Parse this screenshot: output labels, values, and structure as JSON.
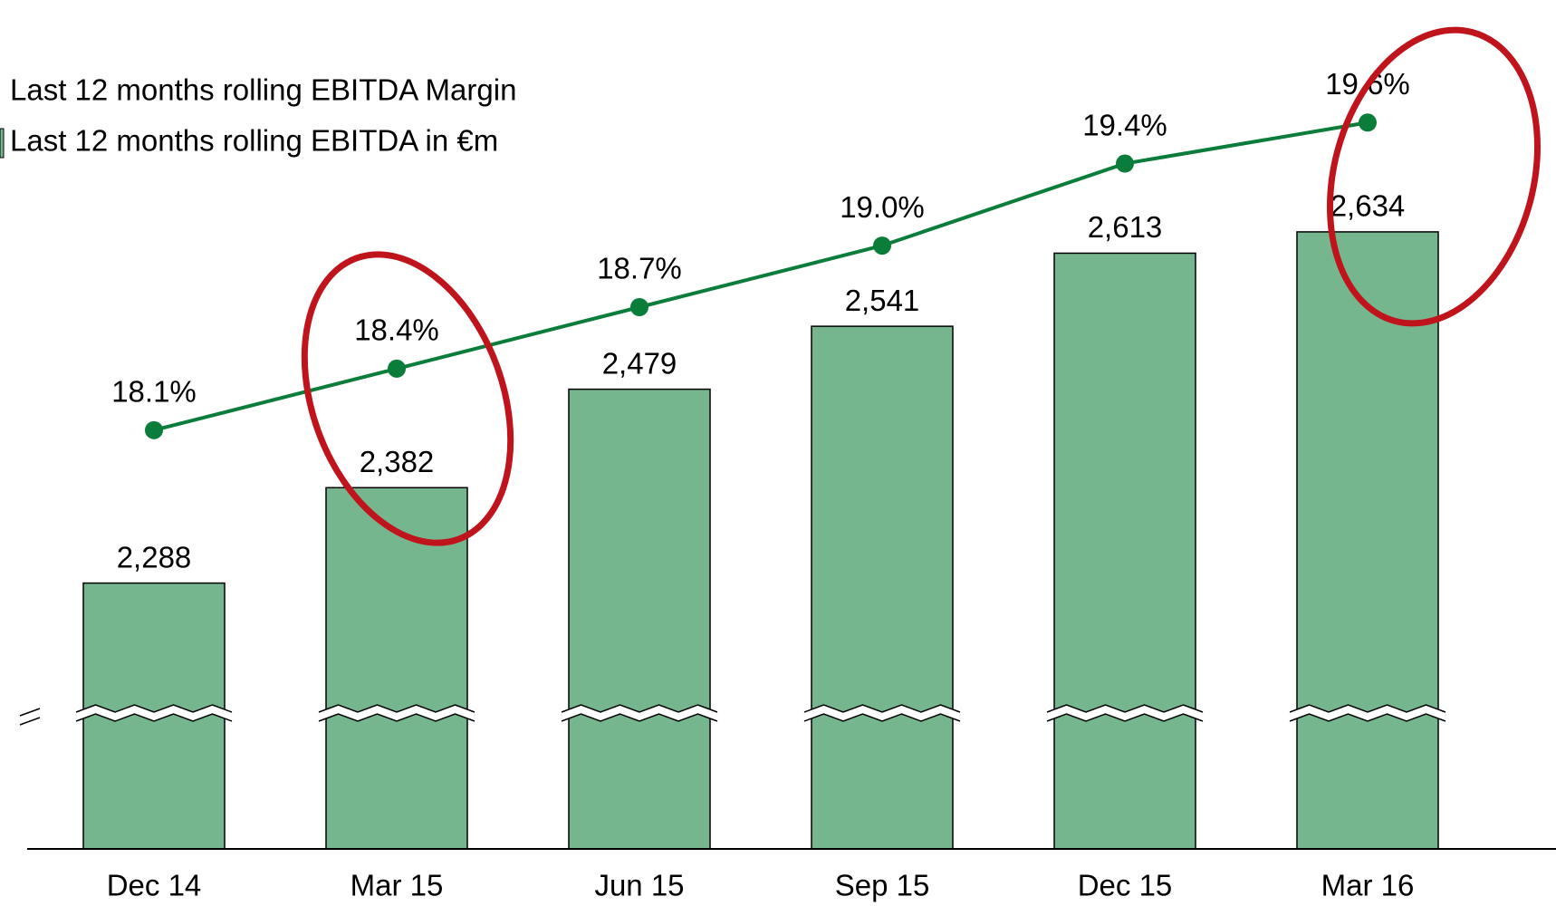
{
  "chart_data": {
    "type": "bar",
    "categories": [
      "Dec 14",
      "Mar 15",
      "Jun 15",
      "Sep 15",
      "Dec 15",
      "Mar 16"
    ],
    "series": [
      {
        "name": "Last 12 months rolling EBITDA in €m",
        "type": "bar",
        "color": "#76b68f",
        "values": [
          2288,
          2382,
          2479,
          2541,
          2613,
          2634
        ],
        "value_labels": [
          "2,288",
          "2,382",
          "2,479",
          "2,541",
          "2,613",
          "2,634"
        ]
      },
      {
        "name": "Last 12 months rolling EBITDA Margin",
        "type": "line",
        "axis": "y2",
        "color": "#0a7d3a",
        "values": [
          18.1,
          18.4,
          18.7,
          19.0,
          19.4,
          19.6
        ],
        "value_labels": [
          "18.1%",
          "18.4%",
          "18.7%",
          "19.0%",
          "19.4%",
          "19.6%"
        ]
      }
    ],
    "ylim": [
      2160,
      2650
    ],
    "y2lim": [
      17.6,
      19.8
    ],
    "axis_break": true
  }
}
